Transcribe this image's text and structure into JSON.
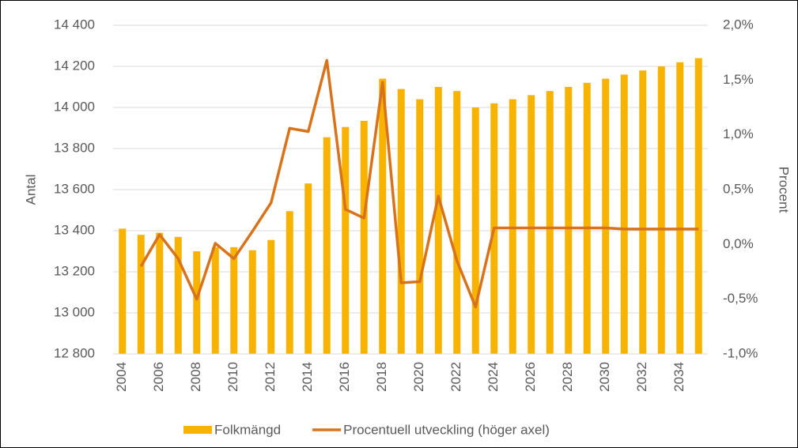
{
  "chart_data": {
    "type": "bar-line",
    "y_label": "Antal",
    "y2_label": "Procent",
    "categories": [
      "2004",
      null,
      "2006",
      null,
      "2008",
      null,
      "2010",
      null,
      "2012",
      null,
      "2014",
      null,
      "2016",
      null,
      "2018",
      null,
      "2020",
      null,
      "2022",
      null,
      "2024",
      null,
      "2026",
      null,
      "2028",
      null,
      "2030",
      null,
      "2032",
      null,
      "2034",
      null
    ],
    "series": [
      {
        "name": "Folkmängd",
        "type": "bar",
        "color": "#f8b300",
        "values": [
          13410,
          13380,
          13390,
          13370,
          13300,
          13320,
          13320,
          13305,
          13355,
          13495,
          13630,
          13855,
          13905,
          13935,
          14140,
          14090,
          14040,
          14100,
          14080,
          14000,
          14020,
          14040,
          14060,
          14080,
          14100,
          14120,
          14140,
          14160,
          14180,
          14200,
          14220,
          14240
        ]
      },
      {
        "name": "Procentuell utveckling (höger axel)",
        "type": "line",
        "axis": "y2",
        "color": "#d9731b",
        "values": [
          null,
          -0.2,
          0.09,
          -0.13,
          -0.5,
          0.01,
          -0.13,
          0.12,
          0.38,
          1.06,
          1.03,
          1.68,
          0.32,
          0.24,
          1.48,
          -0.35,
          -0.34,
          0.44,
          -0.15,
          -0.57,
          0.15,
          0.15,
          0.15,
          0.15,
          0.15,
          0.15,
          0.15,
          0.14,
          0.14,
          0.14,
          0.14,
          0.14
        ]
      }
    ],
    "ylim": [
      12800,
      14400
    ],
    "yticks": [
      {
        "value": 12800,
        "label": "12 800"
      },
      {
        "value": 13000,
        "label": "13 000"
      },
      {
        "value": 13200,
        "label": "13 200"
      },
      {
        "value": 13400,
        "label": "13 400"
      },
      {
        "value": 13600,
        "label": "13 600"
      },
      {
        "value": 13800,
        "label": "13 800"
      },
      {
        "value": 14000,
        "label": "14 000"
      },
      {
        "value": 14200,
        "label": "14 200"
      },
      {
        "value": 14400,
        "label": "14 400"
      }
    ],
    "y2lim": [
      -1.0,
      2.0
    ],
    "y2ticks": [
      {
        "value": -1.0,
        "label": "-1,0%"
      },
      {
        "value": -0.5,
        "label": "-0,5%"
      },
      {
        "value": 0.0,
        "label": "0,0%"
      },
      {
        "value": 0.5,
        "label": "0,5%"
      },
      {
        "value": 1.0,
        "label": "1,0%"
      },
      {
        "value": 1.5,
        "label": "1,5%"
      },
      {
        "value": 2.0,
        "label": "2,0%"
      }
    ],
    "grid": true,
    "legend": "bottom"
  }
}
